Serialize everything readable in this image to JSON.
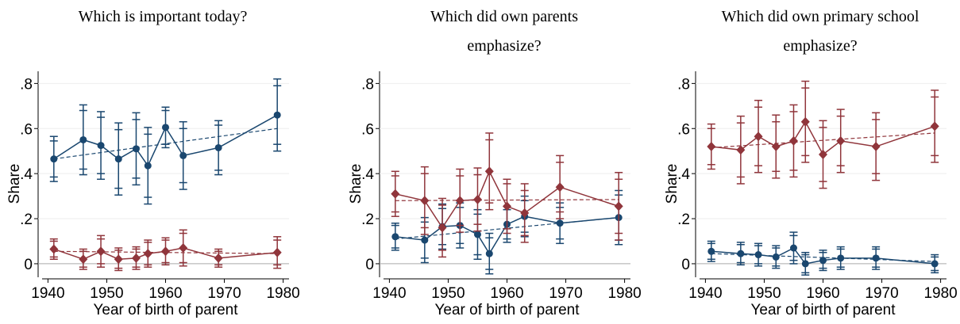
{
  "chart_data": [
    {
      "type": "line",
      "title": [
        "Which is important today?"
      ],
      "x_label": "Year of birth of parent",
      "y_label": "Share",
      "x": [
        1941,
        1946,
        1949,
        1952,
        1955,
        1957,
        1960,
        1963,
        1969,
        1979
      ],
      "xlim": [
        1939,
        1981
      ],
      "xticks": [
        1940,
        1950,
        1960,
        1970,
        1980
      ],
      "ylim": [
        -0.06,
        0.84
      ],
      "yticks": [
        0,
        {
          "value": 0.2,
          "label": ".2"
        },
        {
          "value": 0.4,
          "label": ".4"
        },
        {
          "value": 0.6,
          "label": ".6"
        },
        {
          "value": 0.8,
          "label": ".8"
        }
      ],
      "grid": true,
      "series": [
        {
          "color": "#1a476f",
          "marker": "circle",
          "values": [
            0.465,
            0.55,
            0.525,
            0.465,
            0.51,
            0.435,
            0.605,
            0.48,
            0.515,
            0.66
          ],
          "err95": [
            0.1,
            0.155,
            0.15,
            0.16,
            0.16,
            0.17,
            0.09,
            0.15,
            0.12,
            0.16
          ],
          "err90": [
            0.08,
            0.13,
            0.125,
            0.13,
            0.13,
            0.14,
            0.075,
            0.12,
            0.1,
            0.13
          ],
          "fit": {
            "x": [
              1941,
              1979
            ],
            "values": [
              0.465,
              0.6
            ]
          }
        },
        {
          "color": "#90353b",
          "marker": "diamond",
          "values": [
            0.065,
            0.02,
            0.055,
            0.02,
            0.025,
            0.045,
            0.055,
            0.07,
            0.025,
            0.05
          ],
          "err95": [
            0.045,
            0.045,
            0.07,
            0.05,
            0.05,
            0.06,
            0.06,
            0.08,
            0.04,
            0.07
          ],
          "err90": [
            0.035,
            0.035,
            0.055,
            0.04,
            0.04,
            0.05,
            0.05,
            0.065,
            0.03,
            0.055
          ],
          "fit": {
            "x": [
              1941,
              1979
            ],
            "values": [
              0.055,
              0.045
            ]
          }
        }
      ]
    },
    {
      "type": "line",
      "title": [
        "Which did own parents",
        "emphasize?"
      ],
      "x_label": "Year of birth of parent",
      "y_label": "Share",
      "x": [
        1941,
        1946,
        1949,
        1952,
        1955,
        1957,
        1960,
        1963,
        1969,
        1979
      ],
      "xlim": [
        1939,
        1981
      ],
      "xticks": [
        1940,
        1950,
        1960,
        1970,
        1980
      ],
      "ylim": [
        -0.06,
        0.84
      ],
      "yticks": [
        0,
        {
          "value": 0.2,
          "label": ".2"
        },
        {
          "value": 0.4,
          "label": ".4"
        },
        {
          "value": 0.6,
          "label": ".6"
        },
        {
          "value": 0.8,
          "label": ".8"
        }
      ],
      "grid": true,
      "series": [
        {
          "color": "#1a476f",
          "marker": "circle",
          "values": [
            0.12,
            0.105,
            0.165,
            0.17,
            0.13,
            0.045,
            0.175,
            0.21,
            0.18,
            0.205
          ],
          "err95": [
            0.06,
            0.1,
            0.1,
            0.1,
            0.11,
            0.09,
            0.08,
            0.09,
            0.09,
            0.12
          ],
          "err90": [
            0.05,
            0.08,
            0.08,
            0.08,
            0.09,
            0.07,
            0.065,
            0.07,
            0.07,
            0.1
          ],
          "fit": {
            "x": [
              1941,
              1979
            ],
            "values": [
              0.11,
              0.205
            ]
          }
        },
        {
          "color": "#90353b",
          "marker": "diamond",
          "values": [
            0.31,
            0.28,
            0.16,
            0.28,
            0.285,
            0.41,
            0.255,
            0.225,
            0.34,
            0.255
          ],
          "err95": [
            0.1,
            0.15,
            0.13,
            0.14,
            0.14,
            0.17,
            0.12,
            0.13,
            0.14,
            0.15
          ],
          "err90": [
            0.08,
            0.12,
            0.1,
            0.11,
            0.11,
            0.14,
            0.1,
            0.1,
            0.11,
            0.12
          ],
          "fit": {
            "x": [
              1941,
              1979
            ],
            "values": [
              0.28,
              0.285
            ]
          }
        }
      ]
    },
    {
      "type": "line",
      "title": [
        "Which did own primary school",
        "emphasize?"
      ],
      "x_label": "Year of birth of parent",
      "y_label": "Share",
      "x": [
        1941,
        1946,
        1949,
        1952,
        1955,
        1957,
        1960,
        1963,
        1969,
        1979
      ],
      "xlim": [
        1939,
        1981
      ],
      "xticks": [
        1940,
        1950,
        1960,
        1970,
        1980
      ],
      "ylim": [
        -0.06,
        0.84
      ],
      "yticks": [
        0,
        {
          "value": 0.2,
          "label": ".2"
        },
        {
          "value": 0.4,
          "label": ".4"
        },
        {
          "value": 0.6,
          "label": ".6"
        },
        {
          "value": 0.8,
          "label": ".8"
        }
      ],
      "grid": true,
      "series": [
        {
          "color": "#90353b",
          "marker": "diamond",
          "values": [
            0.52,
            0.505,
            0.565,
            0.52,
            0.545,
            0.63,
            0.485,
            0.545,
            0.52,
            0.61
          ],
          "err95": [
            0.1,
            0.15,
            0.16,
            0.14,
            0.16,
            0.18,
            0.15,
            0.14,
            0.15,
            0.16
          ],
          "err90": [
            0.08,
            0.12,
            0.13,
            0.11,
            0.13,
            0.15,
            0.12,
            0.11,
            0.12,
            0.13
          ],
          "fit": {
            "x": [
              1941,
              1979
            ],
            "values": [
              0.515,
              0.58
            ]
          }
        },
        {
          "color": "#1a476f",
          "marker": "circle",
          "values": [
            0.055,
            0.045,
            0.04,
            0.03,
            0.07,
            0.0,
            0.015,
            0.025,
            0.025,
            0.0
          ],
          "err95": [
            0.045,
            0.05,
            0.05,
            0.05,
            0.07,
            0.05,
            0.045,
            0.05,
            0.05,
            0.04
          ],
          "err90": [
            0.035,
            0.04,
            0.04,
            0.04,
            0.055,
            0.04,
            0.035,
            0.04,
            0.04,
            0.03
          ],
          "fit": {
            "x": [
              1941,
              1979
            ],
            "values": [
              0.045,
              0.01
            ]
          }
        }
      ]
    }
  ]
}
